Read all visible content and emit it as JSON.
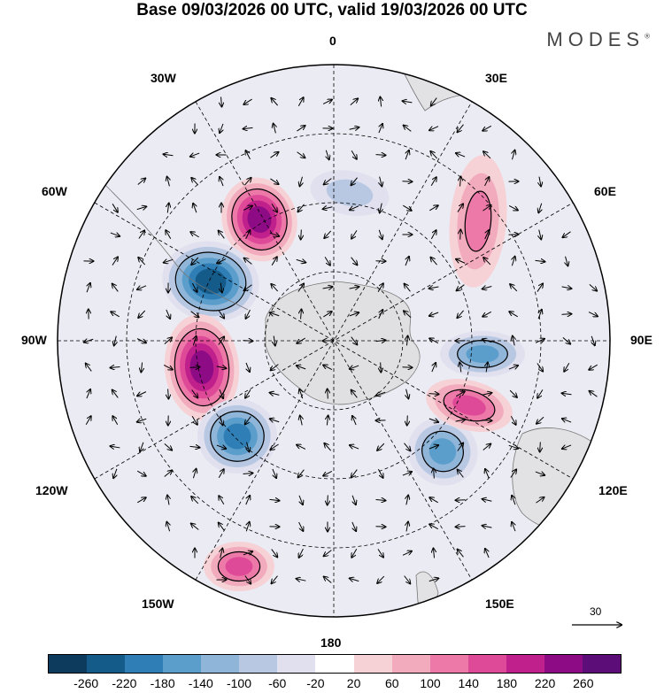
{
  "header": {
    "title": "Base 09/03/2026 00 UTC, valid 19/03/2026 00 UTC",
    "brand": "MODES"
  },
  "map": {
    "projection": "south polar stereographic",
    "longitude_labels": {
      "top": "0",
      "bottom": "180",
      "left": "90W",
      "right": "90E",
      "nw1": "30W",
      "nw2": "60W",
      "ne1": "30E",
      "ne2": "60E",
      "sw1": "120W",
      "sw2": "150W",
      "se1": "120E",
      "se2": "150E"
    },
    "anomalies": [
      {
        "name": "positive-anomaly-60w",
        "value": 240
      },
      {
        "name": "negative-anomaly-75w",
        "value": -230
      },
      {
        "name": "positive-anomaly-95w",
        "value": 220
      },
      {
        "name": "negative-anomaly-115w",
        "value": -200
      },
      {
        "name": "negative-anomaly-85e",
        "value": -140
      },
      {
        "name": "negative-anomaly-110e",
        "value": -160
      },
      {
        "name": "positive-anomaly-100e",
        "value": 140
      },
      {
        "name": "positive-anomaly-35e",
        "value": 120
      },
      {
        "name": "positive-anomaly-150w",
        "value": 140
      },
      {
        "name": "negative-anomaly-20e",
        "value": -90
      }
    ]
  },
  "wind_scale": {
    "label": "30"
  },
  "colorbar": {
    "colors": [
      "#0d3b5e",
      "#155b8a",
      "#2f7fb6",
      "#5b9dcb",
      "#8fb5d9",
      "#b8c8e3",
      "#e0e0ef",
      "#ffffff",
      "#f6d2d6",
      "#f2aabd",
      "#ec79a8",
      "#df4a98",
      "#c0208c",
      "#8e0b86",
      "#5d0d77"
    ],
    "ticks": [
      "-260",
      "-220",
      "-180",
      "-140",
      "-100",
      "-60",
      "-20",
      "20",
      "60",
      "100",
      "140",
      "180",
      "220",
      "260"
    ]
  }
}
